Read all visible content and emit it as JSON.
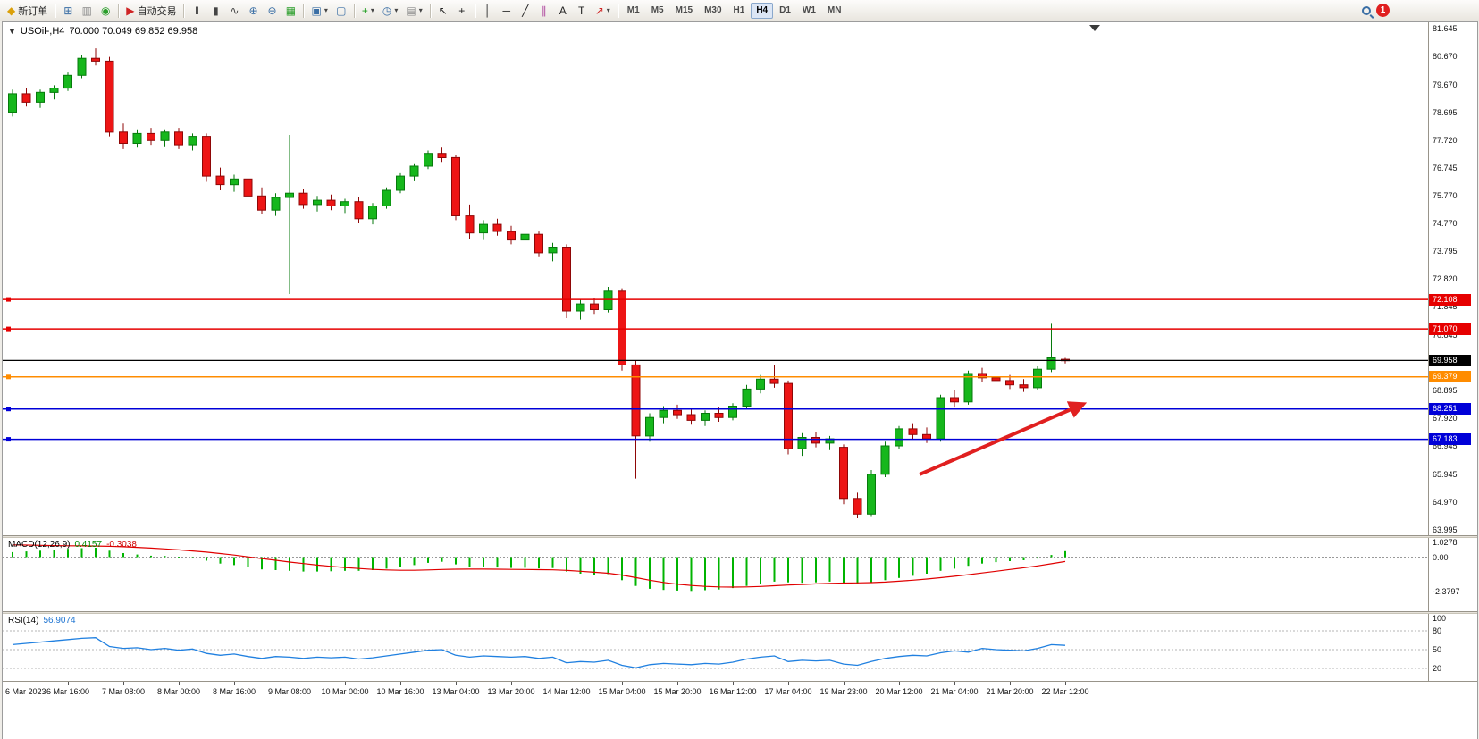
{
  "toolbar": {
    "groups": [
      [
        {
          "name": "new-order-button",
          "icon": "new-order-icon",
          "glyph": "◆",
          "color": "#dba00a",
          "label": "新订单"
        }
      ],
      [
        {
          "name": "charts-window-button",
          "icon": "chart-window-icon",
          "glyph": "⊞",
          "color": "#3a6ea5"
        },
        {
          "name": "profiles-button",
          "icon": "profiles-icon",
          "glyph": "▥",
          "color": "#8a8a8a"
        },
        {
          "name": "navigator-button",
          "icon": "navigator-icon",
          "glyph": "◉",
          "color": "#2a9d2a"
        }
      ],
      [
        {
          "name": "autotrading-button",
          "icon": "autotrading-icon",
          "glyph": "▶",
          "color": "#cf2424",
          "label": "自动交易"
        }
      ],
      [
        {
          "name": "bars-chart-button",
          "icon": "bars-chart-icon",
          "glyph": "‖",
          "color": "#444444"
        },
        {
          "name": "candles-chart-button",
          "icon": "candles-chart-icon",
          "glyph": "▮",
          "color": "#444444"
        },
        {
          "name": "line-chart-button",
          "icon": "line-chart-icon",
          "glyph": "∿",
          "color": "#444444"
        },
        {
          "name": "zoom-in-button",
          "icon": "zoom-in-icon",
          "glyph": "⊕",
          "color": "#3a6ea5"
        },
        {
          "name": "zoom-out-button",
          "icon": "zoom-out-icon",
          "glyph": "⊖",
          "color": "#3a6ea5"
        },
        {
          "name": "grid-button",
          "icon": "grid-icon",
          "glyph": "▦",
          "color": "#2a9d2a"
        }
      ],
      [
        {
          "name": "tile-windows-button",
          "icon": "tile-windows-icon",
          "glyph": "▣",
          "color": "#3a6ea5",
          "dropdown": true
        },
        {
          "name": "arrange-windows-button",
          "icon": "cascade-icon",
          "glyph": "▢",
          "color": "#3a6ea5"
        }
      ],
      [
        {
          "name": "indicators-button",
          "icon": "add-indicator-icon",
          "glyph": "+",
          "color": "#1c9c1c",
          "dropdown": true
        },
        {
          "name": "periods-button",
          "icon": "clock-icon",
          "glyph": "◷",
          "color": "#3a6ea5",
          "dropdown": true
        },
        {
          "name": "templates-button",
          "icon": "template-icon",
          "glyph": "▤",
          "color": "#8a8a8a",
          "dropdown": true
        }
      ],
      [
        {
          "name": "cursor-button",
          "icon": "cursor-icon",
          "glyph": "↖",
          "color": "#222222"
        },
        {
          "name": "crosshair-button",
          "icon": "crosshair-icon",
          "glyph": "+",
          "color": "#222222"
        }
      ],
      [
        {
          "name": "vertical-line-button",
          "icon": "vertical-line-icon",
          "glyph": "│",
          "color": "#222222"
        },
        {
          "name": "horizontal-line-button",
          "icon": "horizontal-line-icon",
          "glyph": "─",
          "color": "#222222"
        },
        {
          "name": "trendline-button",
          "icon": "trendline-icon",
          "glyph": "╱",
          "color": "#222222"
        },
        {
          "name": "channel-button",
          "icon": "channel-icon",
          "glyph": "∥",
          "color": "#b04aa0"
        },
        {
          "name": "text-button",
          "icon": "text-icon",
          "glyph": "A",
          "color": "#222222"
        },
        {
          "name": "text-label-button",
          "icon": "text-label-icon",
          "glyph": "T",
          "color": "#222222"
        },
        {
          "name": "arrows-button",
          "icon": "arrow-object-icon",
          "glyph": "↗",
          "color": "#cf2424",
          "dropdown": true
        }
      ]
    ],
    "timeframes": [
      "M1",
      "M5",
      "M15",
      "M30",
      "H1",
      "H4",
      "D1",
      "W1",
      "MN"
    ],
    "active_timeframe": "H4",
    "notification_count": "1"
  },
  "chart_data": {
    "type": "candlestick",
    "title_symbol": "USOil-,H4",
    "title_ohlc": "70.000 70.049 69.852 69.958",
    "y_axis_labels": [
      "81.645",
      "80.670",
      "79.670",
      "78.695",
      "77.720",
      "76.745",
      "75.770",
      "74.770",
      "73.795",
      "72.820",
      "71.845",
      "70.845",
      "69.870",
      "68.895",
      "67.920",
      "66.945",
      "65.945",
      "64.970",
      "63.995"
    ],
    "x_labels": [
      "6 Mar 2023",
      "6 Mar 16:00",
      "7 Mar 08:00",
      "8 Mar 00:00",
      "8 Mar 16:00",
      "9 Mar 08:00",
      "10 Mar 00:00",
      "10 Mar 16:00",
      "13 Mar 04:00",
      "13 Mar 20:00",
      "14 Mar 12:00",
      "15 Mar 04:00",
      "15 Mar 20:00",
      "16 Mar 12:00",
      "17 Mar 04:00",
      "19 Mar 23:00",
      "20 Mar 12:00",
      "21 Mar 04:00",
      "21 Mar 20:00",
      "22 Mar 12:00"
    ],
    "candles": [
      [
        78.7,
        79.5,
        78.55,
        79.35
      ],
      [
        79.35,
        79.55,
        78.9,
        79.05
      ],
      [
        79.05,
        79.5,
        78.85,
        79.4
      ],
      [
        79.4,
        79.65,
        79.15,
        79.55
      ],
      [
        79.55,
        80.1,
        79.45,
        80.0
      ],
      [
        80.0,
        80.7,
        79.9,
        80.6
      ],
      [
        80.6,
        80.95,
        80.35,
        80.5
      ],
      [
        80.5,
        80.65,
        77.85,
        78.0
      ],
      [
        78.0,
        78.3,
        77.4,
        77.6
      ],
      [
        77.6,
        78.1,
        77.45,
        77.95
      ],
      [
        77.95,
        78.15,
        77.55,
        77.7
      ],
      [
        77.7,
        78.1,
        77.5,
        78.0
      ],
      [
        78.0,
        78.15,
        77.4,
        77.55
      ],
      [
        77.55,
        77.95,
        77.35,
        77.85
      ],
      [
        77.85,
        77.95,
        76.25,
        76.45
      ],
      [
        76.45,
        76.75,
        75.95,
        76.15
      ],
      [
        76.15,
        76.5,
        75.9,
        76.35
      ],
      [
        76.35,
        76.55,
        75.6,
        75.75
      ],
      [
        75.75,
        76.05,
        75.1,
        75.25
      ],
      [
        75.25,
        75.85,
        75.05,
        75.7
      ],
      [
        75.7,
        77.9,
        72.3,
        75.85
      ],
      [
        75.85,
        76.0,
        75.3,
        75.45
      ],
      [
        75.45,
        75.75,
        75.2,
        75.6
      ],
      [
        75.6,
        75.8,
        75.25,
        75.4
      ],
      [
        75.4,
        75.65,
        75.15,
        75.55
      ],
      [
        75.55,
        75.7,
        74.8,
        74.95
      ],
      [
        74.95,
        75.5,
        74.75,
        75.4
      ],
      [
        75.4,
        76.05,
        75.3,
        75.95
      ],
      [
        75.95,
        76.55,
        75.85,
        76.45
      ],
      [
        76.45,
        76.9,
        76.3,
        76.8
      ],
      [
        76.8,
        77.35,
        76.7,
        77.25
      ],
      [
        77.25,
        77.45,
        76.95,
        77.1
      ],
      [
        77.1,
        77.2,
        74.9,
        75.05
      ],
      [
        75.05,
        75.45,
        74.25,
        74.45
      ],
      [
        74.45,
        74.9,
        74.2,
        74.75
      ],
      [
        74.75,
        74.95,
        74.35,
        74.5
      ],
      [
        74.5,
        74.7,
        74.05,
        74.2
      ],
      [
        74.2,
        74.55,
        73.95,
        74.4
      ],
      [
        74.4,
        74.5,
        73.6,
        73.75
      ],
      [
        73.75,
        74.1,
        73.45,
        73.95
      ],
      [
        73.95,
        74.05,
        71.45,
        71.7
      ],
      [
        71.7,
        72.1,
        71.4,
        71.95
      ],
      [
        71.95,
        72.15,
        71.6,
        71.75
      ],
      [
        71.75,
        72.55,
        71.65,
        72.4
      ],
      [
        72.4,
        72.5,
        69.6,
        69.8
      ],
      [
        69.8,
        69.95,
        65.8,
        67.3
      ],
      [
        67.3,
        68.1,
        67.1,
        67.95
      ],
      [
        67.95,
        68.35,
        67.75,
        68.2
      ],
      [
        68.2,
        68.4,
        67.9,
        68.05
      ],
      [
        68.05,
        68.25,
        67.7,
        67.85
      ],
      [
        67.85,
        68.2,
        67.65,
        68.1
      ],
      [
        68.1,
        68.3,
        67.8,
        67.95
      ],
      [
        67.95,
        68.45,
        67.85,
        68.35
      ],
      [
        68.35,
        69.1,
        68.25,
        68.95
      ],
      [
        68.95,
        69.45,
        68.8,
        69.3
      ],
      [
        69.3,
        69.8,
        69.0,
        69.15
      ],
      [
        69.15,
        69.25,
        66.65,
        66.85
      ],
      [
        66.85,
        67.4,
        66.6,
        67.25
      ],
      [
        67.25,
        67.45,
        66.9,
        67.05
      ],
      [
        67.05,
        67.3,
        66.8,
        67.2
      ],
      [
        66.9,
        67.0,
        64.9,
        65.1
      ],
      [
        65.1,
        65.3,
        64.4,
        64.55
      ],
      [
        64.55,
        66.1,
        64.45,
        65.95
      ],
      [
        65.95,
        67.1,
        65.85,
        66.95
      ],
      [
        66.95,
        67.65,
        66.85,
        67.55
      ],
      [
        67.55,
        67.75,
        67.2,
        67.35
      ],
      [
        67.35,
        67.6,
        67.05,
        67.2
      ],
      [
        67.2,
        68.75,
        67.1,
        68.65
      ],
      [
        68.65,
        68.9,
        68.3,
        68.5
      ],
      [
        68.5,
        69.6,
        68.4,
        69.5
      ],
      [
        69.5,
        69.7,
        69.2,
        69.35
      ],
      [
        69.35,
        69.55,
        69.1,
        69.25
      ],
      [
        69.25,
        69.45,
        68.95,
        69.1
      ],
      [
        69.1,
        69.3,
        68.85,
        69.0
      ],
      [
        69.0,
        69.75,
        68.9,
        69.65
      ],
      [
        69.65,
        71.25,
        69.55,
        70.05
      ],
      [
        70.0,
        70.049,
        69.852,
        69.958
      ]
    ],
    "hlines": [
      {
        "value": "72.108",
        "price": 72.108,
        "color": "#e60000",
        "width": 1.5,
        "handle": true
      },
      {
        "value": "71.070",
        "price": 71.07,
        "color": "#e60000",
        "width": 1.5,
        "handle": true
      },
      {
        "value": "69.958",
        "price": 69.958,
        "color": "#000000",
        "width": 1.2,
        "handle": false
      },
      {
        "value": "69.379",
        "price": 69.379,
        "color": "#ff8c00",
        "width": 1.5,
        "handle": true
      },
      {
        "value": "68.251",
        "price": 68.251,
        "color": "#0000d8",
        "width": 1.5,
        "handle": true
      },
      {
        "value": "67.183",
        "price": 67.183,
        "color": "#0000d8",
        "width": 1.5,
        "handle": true
      }
    ],
    "arrow": {
      "from_bar": 65.5,
      "from_price": 65.95,
      "to_bar": 77.2,
      "to_price": 68.4,
      "color": "#e02020"
    },
    "colors": {
      "bull": "#16b71c",
      "bull_border": "#077a0c",
      "bear": "#ed1515",
      "bear_border": "#8f0707",
      "macd_hist": "#00b400",
      "macd_signal": "#e00000",
      "rsi_line": "#2080e0"
    },
    "indicators": {
      "macd": {
        "label": "MACD(12,26,9)",
        "value_main": "0.4157",
        "value_signal": "-0.3038",
        "scale": [
          "1.0278",
          "0.00",
          "-2.3797"
        ],
        "histogram": [
          0.35,
          0.4,
          0.45,
          0.52,
          0.58,
          0.62,
          0.65,
          0.45,
          0.28,
          0.18,
          0.1,
          0.08,
          0.02,
          -0.05,
          -0.25,
          -0.45,
          -0.55,
          -0.68,
          -0.85,
          -0.9,
          -0.95,
          -1.0,
          -1.0,
          -0.98,
          -0.95,
          -0.95,
          -0.9,
          -0.8,
          -0.68,
          -0.55,
          -0.4,
          -0.32,
          -0.5,
          -0.65,
          -0.7,
          -0.72,
          -0.75,
          -0.74,
          -0.78,
          -0.76,
          -1.0,
          -1.15,
          -1.22,
          -1.18,
          -1.6,
          -2.0,
          -2.2,
          -2.28,
          -2.32,
          -2.35,
          -2.3,
          -2.25,
          -2.15,
          -2.0,
          -1.85,
          -1.7,
          -1.75,
          -1.78,
          -1.75,
          -1.7,
          -1.8,
          -1.85,
          -1.75,
          -1.6,
          -1.45,
          -1.3,
          -1.15,
          -0.95,
          -0.8,
          -0.6,
          -0.45,
          -0.35,
          -0.28,
          -0.22,
          -0.1,
          0.15,
          0.4157
        ],
        "signal": [
          0.85,
          0.84,
          0.82,
          0.8,
          0.79,
          0.78,
          0.77,
          0.75,
          0.72,
          0.68,
          0.63,
          0.57,
          0.5,
          0.43,
          0.35,
          0.25,
          0.14,
          0.02,
          -0.1,
          -0.22,
          -0.34,
          -0.45,
          -0.55,
          -0.64,
          -0.72,
          -0.79,
          -0.85,
          -0.89,
          -0.91,
          -0.91,
          -0.89,
          -0.86,
          -0.84,
          -0.83,
          -0.83,
          -0.84,
          -0.85,
          -0.86,
          -0.87,
          -0.88,
          -0.92,
          -0.98,
          -1.05,
          -1.12,
          -1.25,
          -1.42,
          -1.6,
          -1.76,
          -1.88,
          -1.97,
          -2.03,
          -2.07,
          -2.08,
          -2.07,
          -2.04,
          -1.99,
          -1.94,
          -1.9,
          -1.86,
          -1.82,
          -1.8,
          -1.79,
          -1.77,
          -1.73,
          -1.67,
          -1.6,
          -1.52,
          -1.43,
          -1.33,
          -1.22,
          -1.1,
          -0.98,
          -0.86,
          -0.74,
          -0.61,
          -0.46,
          -0.3038
        ]
      },
      "rsi": {
        "label": "RSI(14)",
        "value": "56.9074",
        "scale": [
          "100",
          "80",
          "50",
          "20"
        ],
        "levels": [
          80,
          50,
          20
        ],
        "values": [
          58,
          60,
          62,
          64,
          66,
          68,
          69,
          55,
          52,
          53,
          50,
          52,
          49,
          51,
          44,
          41,
          43,
          39,
          36,
          39,
          38,
          36,
          38,
          37,
          38,
          35,
          37,
          40,
          43,
          46,
          49,
          50,
          41,
          38,
          40,
          39,
          38,
          39,
          36,
          38,
          29,
          31,
          30,
          33,
          25,
          21,
          26,
          28,
          27,
          26,
          28,
          27,
          30,
          35,
          38,
          40,
          31,
          33,
          32,
          33,
          27,
          25,
          31,
          36,
          39,
          41,
          40,
          45,
          48,
          46,
          52,
          50,
          49,
          48,
          52,
          58,
          56.9074
        ]
      }
    }
  }
}
